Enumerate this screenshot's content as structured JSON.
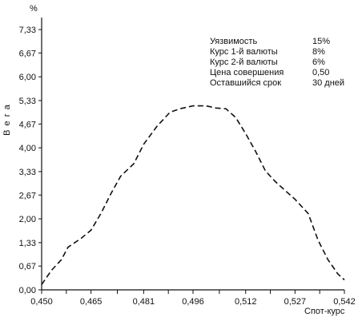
{
  "chart_data": {
    "type": "line",
    "y_unit": "%",
    "ylabel": "В е г а",
    "xlabel": "Спот-курс",
    "x_ticks": [
      "0,450",
      "0,465",
      "0,481",
      "0,496",
      "0,512",
      "0,527",
      "0,542"
    ],
    "y_ticks": [
      "0,00",
      "0,67",
      "1,33",
      "2,00",
      "2,67",
      "3,33",
      "4,00",
      "4,67",
      "5,33",
      "6,00",
      "6,67",
      "7,33"
    ],
    "xlim": [
      0.45,
      0.542
    ],
    "ylim": [
      0,
      7.33
    ],
    "grid": false,
    "line_style": "dashed",
    "series": [
      {
        "values": [
          [
            0.45,
            0.15
          ],
          [
            0.453,
            0.55
          ],
          [
            0.456,
            0.85
          ],
          [
            0.458,
            1.2
          ],
          [
            0.462,
            1.45
          ],
          [
            0.465,
            1.68
          ],
          [
            0.468,
            2.15
          ],
          [
            0.471,
            2.7
          ],
          [
            0.474,
            3.2
          ],
          [
            0.478,
            3.55
          ],
          [
            0.481,
            4.1
          ],
          [
            0.485,
            4.6
          ],
          [
            0.489,
            5.0
          ],
          [
            0.492,
            5.1
          ],
          [
            0.496,
            5.18
          ],
          [
            0.5,
            5.18
          ],
          [
            0.503,
            5.12
          ],
          [
            0.506,
            5.1
          ],
          [
            0.509,
            4.85
          ],
          [
            0.512,
            4.4
          ],
          [
            0.515,
            3.9
          ],
          [
            0.518,
            3.35
          ],
          [
            0.521,
            3.05
          ],
          [
            0.524,
            2.8
          ],
          [
            0.527,
            2.55
          ],
          [
            0.531,
            2.15
          ],
          [
            0.534,
            1.4
          ],
          [
            0.537,
            0.85
          ],
          [
            0.54,
            0.45
          ],
          [
            0.542,
            0.28
          ]
        ]
      }
    ],
    "annotations": [
      {
        "label": "Уязвимость",
        "value": "15%"
      },
      {
        "label": "Курс 1-й валюты",
        "value": "8%"
      },
      {
        "label": "Курс 2-й валюты",
        "value": "6%"
      },
      {
        "label": "Цена совершения",
        "value": "0,50"
      },
      {
        "label": "Оставшийся срок",
        "value": "30 дней"
      }
    ]
  }
}
